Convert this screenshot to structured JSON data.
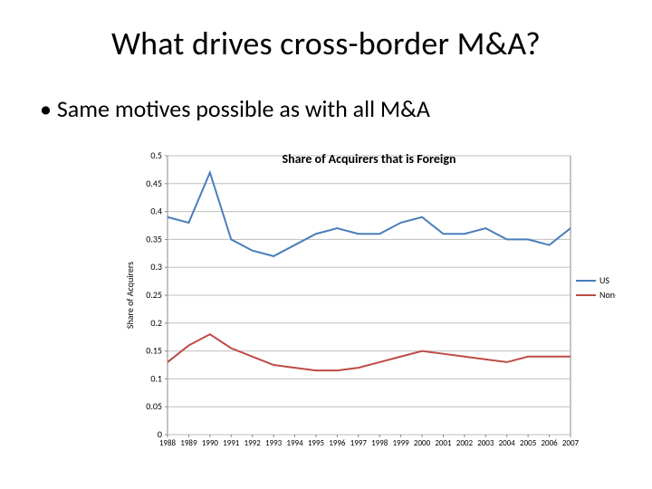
{
  "slide": {
    "title": "What drives cross-border M&A?",
    "bullet": "Same motives possible as with all M&A"
  },
  "chart": {
    "type": "line",
    "title": "Share of Acquirers that is Foreign",
    "title_fontsize": 14,
    "yaxis_label": "Share of Acquirers",
    "yaxis_label_fontsize": 10,
    "xtick_fontsize": 9,
    "ytick_fontsize": 10,
    "background_color": "#ffffff",
    "plot_border_color": "#888888",
    "grid_color": "#bfbfbf",
    "grid_width": 1,
    "line_width": 2,
    "ylim": [
      0,
      0.5
    ],
    "ytick_step": 0.05,
    "yticks": [
      0,
      0.05,
      0.1,
      0.15,
      0.2,
      0.25,
      0.3,
      0.35,
      0.4,
      0.45,
      0.5
    ],
    "years": [
      1988,
      1989,
      1990,
      1991,
      1992,
      1993,
      1994,
      1995,
      1996,
      1997,
      1998,
      1999,
      2000,
      2001,
      2002,
      2003,
      2004,
      2005,
      2006,
      2007
    ],
    "series": [
      {
        "name": "US",
        "color": "#4a7ebb",
        "values": [
          0.39,
          0.38,
          0.47,
          0.35,
          0.33,
          0.32,
          0.34,
          0.36,
          0.37,
          0.36,
          0.36,
          0.38,
          0.39,
          0.36,
          0.36,
          0.37,
          0.35,
          0.35,
          0.34,
          0.37
        ]
      },
      {
        "name": "Non-US",
        "color": "#be4b48",
        "values": [
          0.13,
          0.16,
          0.18,
          0.155,
          0.14,
          0.125,
          0.12,
          0.115,
          0.115,
          0.12,
          0.13,
          0.14,
          0.15,
          0.145,
          0.14,
          0.135,
          0.13,
          0.14,
          0.14,
          0.14
        ]
      }
    ],
    "legend": {
      "position": "right",
      "fontsize": 10,
      "line_length": 22
    }
  }
}
